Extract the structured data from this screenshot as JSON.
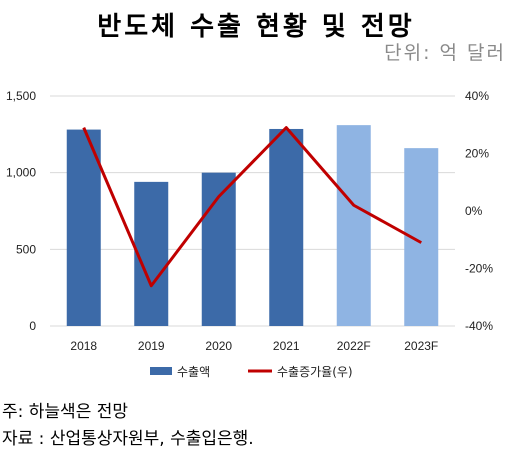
{
  "title": "반도체 수출 현황 및 전망",
  "unit_label": "단위: 억 달러",
  "chart_data": {
    "type": "bar",
    "categories": [
      "2018",
      "2019",
      "2020",
      "2021",
      "2022F",
      "2023F"
    ],
    "series": [
      {
        "name": "수출액",
        "kind": "bar",
        "axis": "left",
        "values": [
          1281,
          940,
          1000,
          1285,
          1310,
          1160
        ],
        "colors": [
          "#3c6aa8",
          "#3c6aa8",
          "#3c6aa8",
          "#3c6aa8",
          "#8fb4e3",
          "#8fb4e3"
        ]
      },
      {
        "name": "수출증가율(우)",
        "kind": "line",
        "axis": "right",
        "values": [
          29,
          -26,
          5,
          29,
          2,
          -11
        ],
        "color": "#c00000"
      }
    ],
    "y_left": {
      "min": 0,
      "max": 1500,
      "ticks": [
        0,
        500,
        1000,
        1500
      ],
      "tick_labels": [
        "0",
        "500",
        "1,000",
        "1,500"
      ]
    },
    "y_right": {
      "min": -40,
      "max": 40,
      "ticks": [
        -40,
        -20,
        0,
        20,
        40
      ],
      "tick_labels": [
        "-40%",
        "-20%",
        "0%",
        "20%",
        "40%"
      ]
    },
    "grid": true,
    "legend_position": "bottom"
  },
  "notes": [
    "주: 하늘색은 전망",
    "자료 : 산업통상자원부, 수출입은행."
  ]
}
